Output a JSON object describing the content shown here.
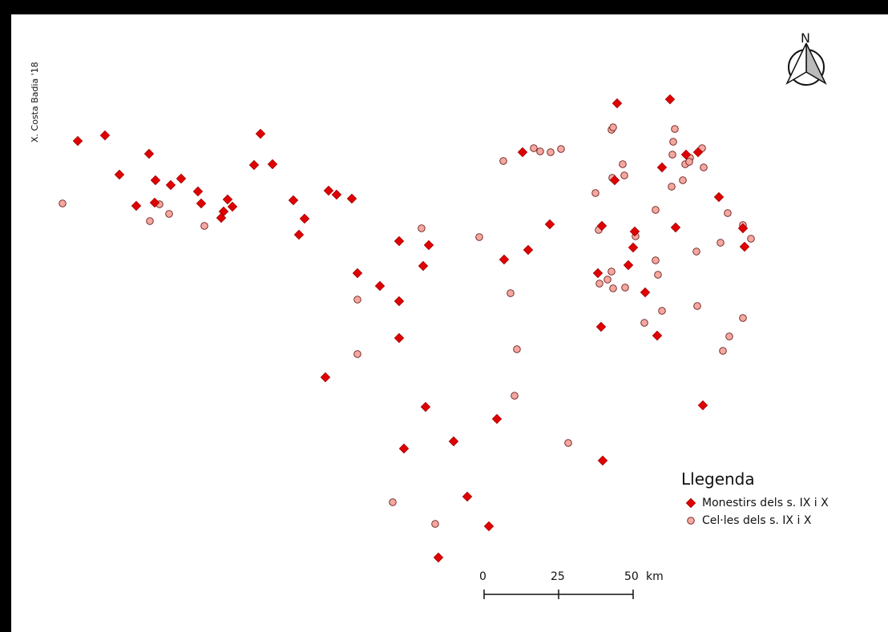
{
  "credit": "X. Costa Badia '18",
  "north_label": "N",
  "legend": {
    "title": "Llegenda",
    "monastery_label": "Monestirs dels s. IX i X",
    "cell_label": "Cel·les dels s. IX i X"
  },
  "scale": {
    "tick0": "0",
    "tick1": "25",
    "tick2": "50",
    "unit": "km"
  },
  "colors": {
    "monastery": "#e00000",
    "cell_fill": "#f4a8a0",
    "cell_stroke": "#6b1a1a"
  }
}
